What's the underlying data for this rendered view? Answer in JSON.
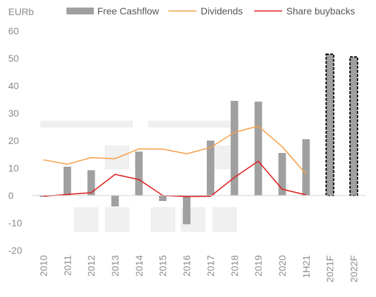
{
  "chart_data": {
    "type": "bar",
    "unit_label": "EURb",
    "categories": [
      "2010",
      "2011",
      "2012",
      "2013",
      "2014",
      "2015",
      "2016",
      "2017",
      "2018",
      "2019",
      "2020",
      "1H21",
      "2021F",
      "2022F"
    ],
    "ylim": [
      -20,
      60
    ],
    "yticks": [
      -20,
      -10,
      0,
      10,
      20,
      30,
      40,
      50,
      60
    ],
    "legend_position": "top",
    "grid": false,
    "series": [
      {
        "name": "Free Cashflow",
        "type": "bar",
        "color": "#a0a0a0",
        "values": [
          -0.5,
          10.5,
          9.2,
          -4.0,
          16.0,
          -2.0,
          -10.5,
          20.0,
          34.5,
          34.2,
          15.5,
          20.5,
          51.5,
          50.5
        ],
        "forecast": [
          false,
          false,
          false,
          false,
          false,
          false,
          false,
          false,
          false,
          false,
          false,
          false,
          true,
          true
        ]
      },
      {
        "name": "Dividends",
        "type": "line",
        "color": "#f5a04a",
        "values": [
          13.0,
          11.4,
          13.8,
          13.4,
          17.0,
          16.9,
          15.2,
          17.5,
          23.0,
          25.3,
          17.8,
          7.8,
          null,
          null
        ]
      },
      {
        "name": "Share buybacks",
        "type": "line",
        "color": "#e02020",
        "values": [
          -0.3,
          0.4,
          1.0,
          7.7,
          5.8,
          0.0,
          -0.4,
          -0.3,
          6.6,
          12.5,
          2.3,
          0.2,
          null,
          null
        ]
      }
    ]
  }
}
